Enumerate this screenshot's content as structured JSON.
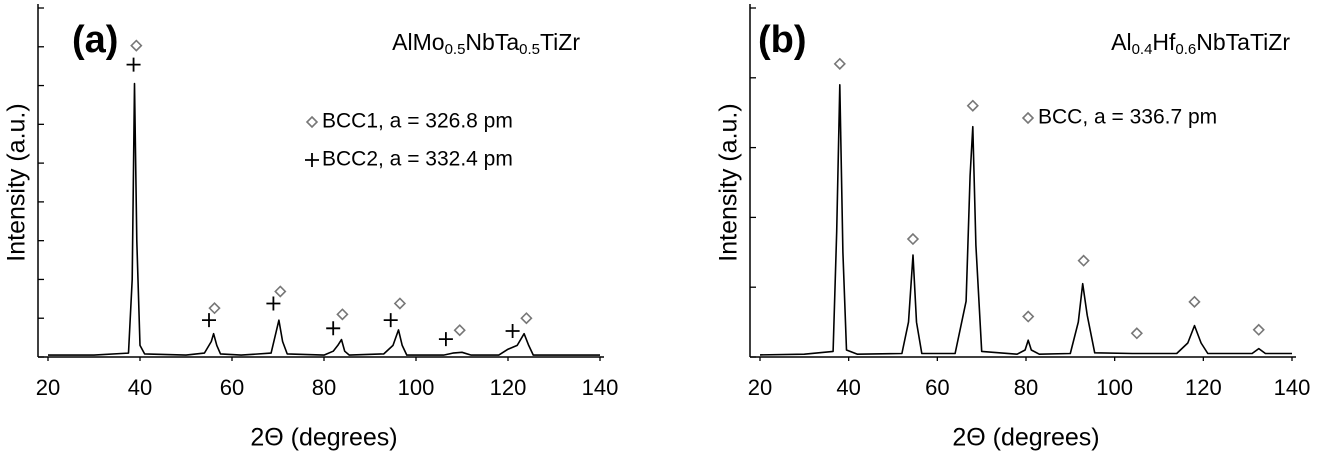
{
  "chart_data": [
    {
      "type": "line",
      "panel": "(a)",
      "title": [
        "AlMo",
        "0.5",
        "NbTa",
        "0.5",
        "TiZr"
      ],
      "xlabel": "2Θ (degrees)",
      "ylabel": "Intensity (a.u.)",
      "color": "#000000",
      "xlim": [
        20,
        140
      ],
      "xticks": [
        20,
        40,
        60,
        80,
        100,
        120,
        140
      ],
      "ylim": [
        0,
        9
      ],
      "yticks": [
        0,
        1,
        2,
        3,
        4,
        5,
        6,
        7,
        8,
        9
      ],
      "x": [
        20,
        30,
        37.5,
        38.3,
        38.8,
        39.3,
        40,
        41,
        50,
        54,
        55.5,
        56,
        56.7,
        57.5,
        62,
        68.5,
        69.5,
        70.2,
        71,
        72,
        80,
        82,
        83,
        83.8,
        84.5,
        85.5,
        93,
        95,
        96.2,
        97,
        98,
        106,
        108,
        110,
        112,
        118,
        120,
        122,
        123.5,
        124.5,
        125.5,
        140
      ],
      "values": [
        0.05,
        0.05,
        0.1,
        2,
        7.05,
        3,
        0.3,
        0.08,
        0.05,
        0.1,
        0.4,
        0.6,
        0.3,
        0.08,
        0.05,
        0.1,
        0.6,
        0.95,
        0.4,
        0.08,
        0.05,
        0.15,
        0.3,
        0.45,
        0.15,
        0.05,
        0.08,
        0.3,
        0.7,
        0.3,
        0.05,
        0.05,
        0.1,
        0.12,
        0.05,
        0.05,
        0.2,
        0.3,
        0.6,
        0.3,
        0.05,
        0.05
      ],
      "phases": [
        {
          "name": "BCC1, a = 326.8 pm",
          "symbol": "diamond",
          "color": "#777777",
          "x": [
            39.2,
            56.2,
            70.5,
            84,
            96.5,
            109.5,
            124
          ],
          "y": [
            8.03,
            1.26,
            1.69,
            1.1,
            1.38,
            0.69,
            1.0
          ]
        },
        {
          "name": "BCC2, a = 332.4 pm",
          "symbol": "plus",
          "color": "#000000",
          "x": [
            38.6,
            55,
            69,
            82,
            94.5,
            106.5,
            121
          ],
          "y": [
            7.54,
            0.95,
            1.38,
            0.74,
            0.95,
            0.46,
            0.67
          ]
        }
      ]
    },
    {
      "type": "line",
      "panel": "(b)",
      "title": [
        "Al",
        "0.4",
        "Hf",
        "0.6",
        "NbTaTiZr"
      ],
      "xlabel": "2Θ (degrees)",
      "ylabel": "Intensity (a.u.)",
      "color": "#000000",
      "xlim": [
        20,
        140
      ],
      "xticks": [
        20,
        40,
        60,
        80,
        100,
        120,
        140
      ],
      "ylim": [
        0,
        5
      ],
      "yticks": [
        0,
        1,
        2,
        3,
        4,
        5
      ],
      "x": [
        20,
        30,
        36.5,
        37.3,
        38,
        38.7,
        39.5,
        42,
        52,
        53.5,
        54.5,
        55.3,
        56.5,
        64,
        66.5,
        67.4,
        68,
        68.7,
        70,
        78,
        79.8,
        80.5,
        81.2,
        83,
        90,
        91.8,
        92.8,
        93.8,
        95.5,
        104,
        114,
        116.5,
        118,
        119.5,
        121,
        131,
        132.5,
        134,
        140
      ],
      "values": [
        0.03,
        0.04,
        0.08,
        1.8,
        3.9,
        1.5,
        0.1,
        0.04,
        0.05,
        0.5,
        1.46,
        0.5,
        0.05,
        0.05,
        0.8,
        2.6,
        3.3,
        1.6,
        0.08,
        0.04,
        0.1,
        0.24,
        0.1,
        0.04,
        0.05,
        0.5,
        1.05,
        0.6,
        0.06,
        0.05,
        0.05,
        0.2,
        0.45,
        0.2,
        0.05,
        0.05,
        0.12,
        0.05,
        0.05
      ],
      "phases": [
        {
          "name": "BCC, a = 336.7 pm",
          "symbol": "diamond",
          "color": "#777777",
          "x": [
            38,
            54.5,
            68,
            80.5,
            93,
            105,
            118,
            132.5
          ],
          "y": [
            4.2,
            1.69,
            3.6,
            0.58,
            1.38,
            0.34,
            0.79,
            0.39
          ]
        }
      ]
    }
  ]
}
